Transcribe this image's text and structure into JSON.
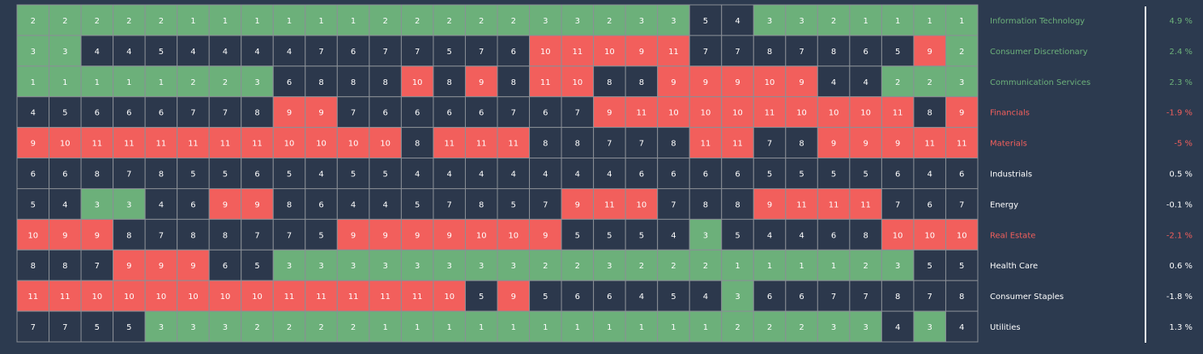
{
  "chart_data": {
    "type": "heatmap",
    "categories": [
      "Information Technology",
      "Consumer Discretionary",
      "Communication Services",
      "Financials",
      "Materials",
      "Industrials",
      "Energy",
      "Real Estate",
      "Health Care",
      "Consumer Staples",
      "Utilities"
    ],
    "changes": [
      "4.9 %",
      "2.4 %",
      "2.3 %",
      "-1.9 %",
      "-5 %",
      "0.5 %",
      "-0.1 %",
      "-2.1 %",
      "0.6 %",
      "-1.8 %",
      "1.3 %"
    ],
    "values": [
      [
        2,
        2,
        2,
        2,
        2,
        1,
        1,
        1,
        1,
        1,
        1,
        2,
        2,
        2,
        2,
        2,
        3,
        3,
        2,
        3,
        3,
        5,
        4,
        3,
        3,
        2,
        1,
        1,
        1,
        1
      ],
      [
        3,
        3,
        4,
        4,
        5,
        4,
        4,
        4,
        4,
        7,
        6,
        7,
        7,
        5,
        7,
        6,
        10,
        11,
        10,
        9,
        11,
        7,
        7,
        8,
        7,
        8,
        6,
        5,
        9,
        2
      ],
      [
        1,
        1,
        1,
        1,
        1,
        2,
        2,
        3,
        6,
        8,
        8,
        8,
        10,
        8,
        9,
        8,
        11,
        10,
        8,
        8,
        9,
        9,
        9,
        10,
        9,
        4,
        4,
        2,
        2,
        3
      ],
      [
        4,
        5,
        6,
        6,
        6,
        7,
        7,
        8,
        9,
        9,
        7,
        6,
        6,
        6,
        6,
        7,
        6,
        7,
        9,
        11,
        10,
        10,
        10,
        11,
        10,
        10,
        10,
        11,
        8,
        9
      ],
      [
        9,
        10,
        11,
        11,
        11,
        11,
        11,
        11,
        10,
        10,
        10,
        10,
        8,
        11,
        11,
        11,
        8,
        8,
        7,
        7,
        8,
        11,
        11,
        7,
        8,
        9,
        9,
        9,
        11,
        11
      ],
      [
        6,
        6,
        8,
        7,
        8,
        5,
        5,
        6,
        5,
        4,
        5,
        5,
        4,
        4,
        4,
        4,
        4,
        4,
        4,
        6,
        6,
        6,
        6,
        5,
        5,
        5,
        5,
        6,
        4,
        6
      ],
      [
        5,
        4,
        3,
        3,
        4,
        6,
        9,
        9,
        8,
        6,
        4,
        4,
        5,
        7,
        8,
        5,
        7,
        9,
        11,
        10,
        7,
        8,
        8,
        9,
        11,
        11,
        11,
        7,
        6,
        7
      ],
      [
        10,
        9,
        9,
        8,
        7,
        8,
        8,
        7,
        7,
        5,
        9,
        9,
        9,
        9,
        10,
        10,
        9,
        5,
        5,
        5,
        4,
        3,
        5,
        4,
        4,
        6,
        8,
        10,
        10,
        10
      ],
      [
        8,
        8,
        7,
        9,
        9,
        9,
        6,
        5,
        3,
        3,
        3,
        3,
        3,
        3,
        3,
        3,
        2,
        2,
        3,
        2,
        2,
        2,
        1,
        1,
        1,
        1,
        2,
        3,
        5,
        5
      ],
      [
        11,
        11,
        10,
        10,
        10,
        10,
        10,
        10,
        11,
        11,
        11,
        11,
        11,
        10,
        5,
        9,
        5,
        6,
        6,
        4,
        5,
        4,
        3,
        6,
        6,
        7,
        7,
        8,
        7,
        8
      ],
      [
        7,
        7,
        5,
        5,
        3,
        3,
        3,
        2,
        2,
        2,
        2,
        1,
        1,
        1,
        1,
        1,
        1,
        1,
        1,
        1,
        1,
        1,
        2,
        2,
        2,
        3,
        3,
        4,
        3,
        4
      ]
    ],
    "colors": {
      "top": "#6cb07a",
      "middle": "#2c384c",
      "bottom": "#f25f5c"
    }
  }
}
